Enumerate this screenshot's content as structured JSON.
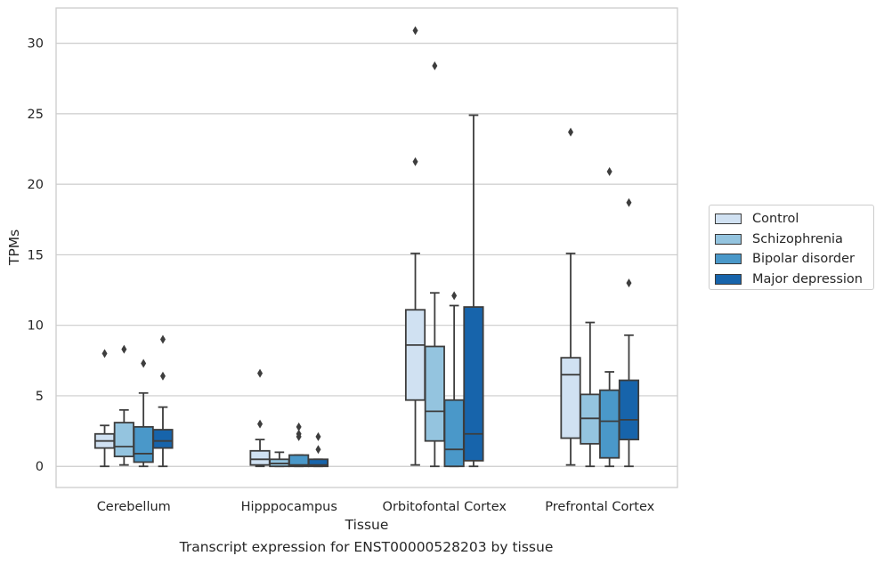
{
  "chart_data": {
    "type": "box",
    "title": "Transcript expression for ENST00000528203 by tissue",
    "xlabel": "Tissue",
    "ylabel": "TPMs",
    "ylim": [
      -1.5,
      32.5
    ],
    "yticks": [
      0,
      5,
      10,
      15,
      20,
      25,
      30
    ],
    "grid": "y",
    "legend_position": "right",
    "categories": [
      "Cerebellum",
      "Hipppocampus",
      "Orbitofontal Cortex",
      "Prefrontal Cortex"
    ],
    "series": [
      {
        "name": "Control",
        "color": "#d0e1f2",
        "boxes": [
          {
            "whislo": 0.0,
            "q1": 1.3,
            "med": 1.8,
            "q3": 2.3,
            "whishi": 2.9,
            "fliers": [
              8.0
            ]
          },
          {
            "whislo": 0.0,
            "q1": 0.1,
            "med": 0.5,
            "q3": 1.1,
            "whishi": 1.9,
            "fliers": [
              3.0,
              6.6
            ]
          },
          {
            "whislo": 0.1,
            "q1": 4.7,
            "med": 8.6,
            "q3": 11.1,
            "whishi": 15.1,
            "fliers": [
              21.6,
              30.9
            ]
          },
          {
            "whislo": 0.1,
            "q1": 2.0,
            "med": 6.5,
            "q3": 7.7,
            "whishi": 15.1,
            "fliers": [
              23.7
            ]
          }
        ]
      },
      {
        "name": "Schizophrenia",
        "color": "#94c4df",
        "boxes": [
          {
            "whislo": 0.1,
            "q1": 0.7,
            "med": 1.4,
            "q3": 3.1,
            "whishi": 4.0,
            "fliers": [
              8.3
            ]
          },
          {
            "whislo": 0.0,
            "q1": 0.0,
            "med": 0.2,
            "q3": 0.5,
            "whishi": 1.0,
            "fliers": []
          },
          {
            "whislo": 0.0,
            "q1": 1.8,
            "med": 3.9,
            "q3": 8.5,
            "whishi": 12.3,
            "fliers": [
              28.4
            ]
          },
          {
            "whislo": 0.0,
            "q1": 1.6,
            "med": 3.4,
            "q3": 5.1,
            "whishi": 10.2,
            "fliers": []
          }
        ]
      },
      {
        "name": "Bipolar disorder",
        "color": "#4a98c9",
        "boxes": [
          {
            "whislo": 0.0,
            "q1": 0.3,
            "med": 0.9,
            "q3": 2.8,
            "whishi": 5.2,
            "fliers": [
              7.3
            ]
          },
          {
            "whislo": 0.0,
            "q1": 0.0,
            "med": 0.1,
            "q3": 0.8,
            "whishi": 0.8,
            "fliers": [
              2.1,
              2.3,
              2.8
            ]
          },
          {
            "whislo": 0.0,
            "q1": 0.0,
            "med": 1.2,
            "q3": 4.7,
            "whishi": 11.4,
            "fliers": [
              12.1
            ]
          },
          {
            "whislo": 0.0,
            "q1": 0.6,
            "med": 3.2,
            "q3": 5.4,
            "whishi": 6.7,
            "fliers": [
              20.9
            ]
          }
        ]
      },
      {
        "name": "Major depression",
        "color": "#1764ab",
        "boxes": [
          {
            "whislo": 0.0,
            "q1": 1.3,
            "med": 1.8,
            "q3": 2.6,
            "whishi": 4.2,
            "fliers": [
              6.4,
              9.0
            ]
          },
          {
            "whislo": 0.0,
            "q1": 0.0,
            "med": 0.1,
            "q3": 0.5,
            "whishi": 0.5,
            "fliers": [
              1.2,
              2.1
            ]
          },
          {
            "whislo": 0.0,
            "q1": 0.4,
            "med": 2.3,
            "q3": 11.3,
            "whishi": 24.9,
            "fliers": []
          },
          {
            "whislo": 0.0,
            "q1": 1.9,
            "med": 3.3,
            "q3": 6.1,
            "whishi": 9.3,
            "fliers": [
              13.0,
              18.7
            ]
          }
        ]
      }
    ]
  }
}
